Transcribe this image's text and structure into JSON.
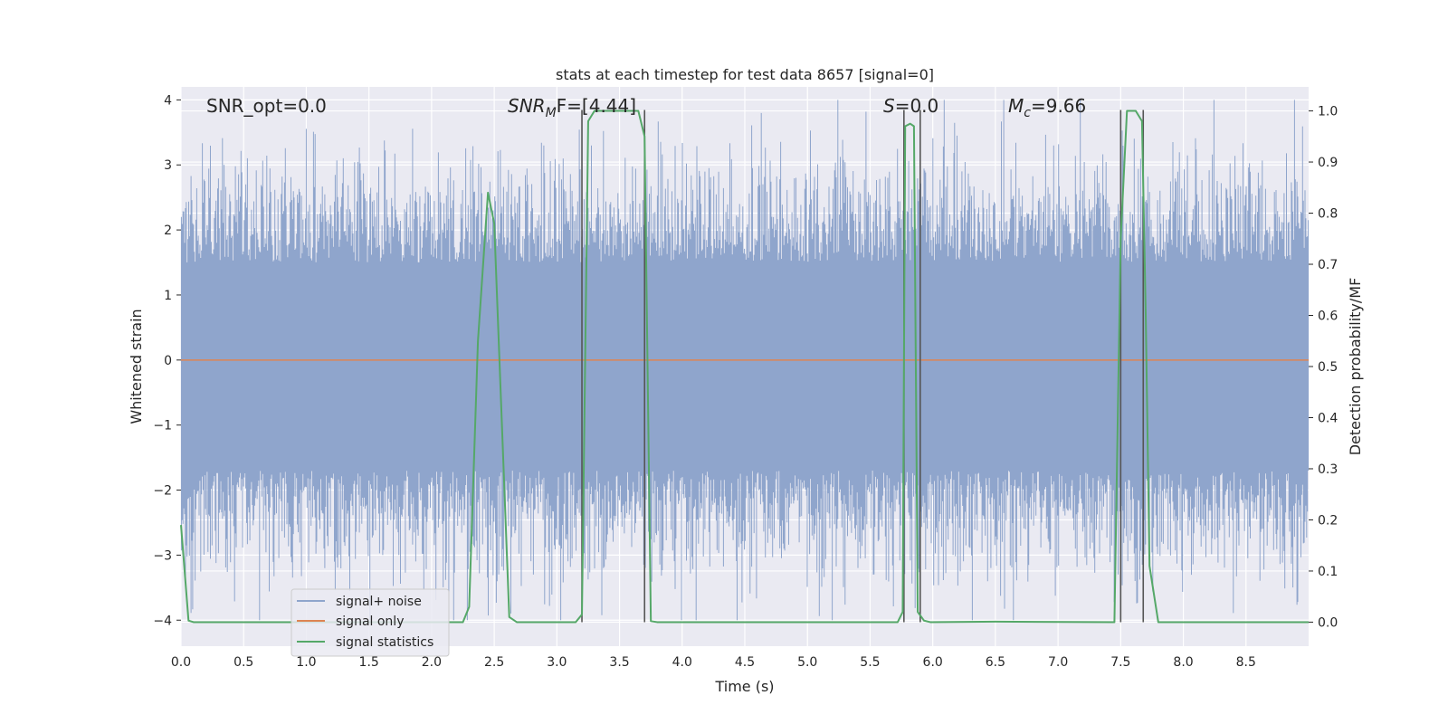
{
  "chart_data": {
    "type": "line",
    "title": "stats at each timestep for test data 8657 [signal=0]",
    "xlabel": "Time (s)",
    "ylabel": "Whitened strain",
    "y2label": "Detection probability/MF",
    "xlim": [
      0.0,
      9.0
    ],
    "ylim": [
      -4.4,
      4.2
    ],
    "y2lim": [
      -0.047,
      1.047
    ],
    "xticks": [
      "0.0",
      "0.5",
      "1.0",
      "1.5",
      "2.0",
      "2.5",
      "3.0",
      "3.5",
      "4.0",
      "4.5",
      "5.0",
      "5.5",
      "6.0",
      "6.5",
      "7.0",
      "7.5",
      "8.0",
      "8.5"
    ],
    "yticks": [
      "−4",
      "−3",
      "−2",
      "−1",
      "0",
      "1",
      "2",
      "3",
      "4"
    ],
    "y2ticks": [
      "0.0",
      "0.1",
      "0.2",
      "0.3",
      "0.4",
      "0.5",
      "0.6",
      "0.7",
      "0.8",
      "0.9",
      "1.0"
    ],
    "grid": true,
    "legend_location": "lower-left",
    "annotations": {
      "snr_opt": "SNR_opt=0.0",
      "snr_mf_prefix": "SNR",
      "snr_mf_sub": "M",
      "snr_mf_suffix": "F=[4.44]",
      "s_italic": "S",
      "s_rest": "=0.0",
      "mc_italic": "M",
      "mc_sub": "c",
      "mc_rest": "=9.66"
    },
    "series": [
      {
        "name": "signal+ noise",
        "color": "#8fa5cc",
        "axis": "left",
        "description": "whitened noise, roughly Gaussian, spans about -4 to 4",
        "envelope_values": [
          -1.7,
          1.5
        ]
      },
      {
        "name": "signal only",
        "color": "#dd8452",
        "axis": "left",
        "x": [
          0.0,
          9.0
        ],
        "y": [
          0.0,
          0.0
        ]
      },
      {
        "name": "signal statistics",
        "color": "#55a868",
        "axis": "right",
        "x": [
          0.0,
          0.06,
          0.1,
          2.25,
          2.3,
          2.37,
          2.45,
          2.5,
          2.62,
          2.68,
          3.15,
          3.2,
          3.25,
          3.3,
          3.65,
          3.7,
          3.75,
          3.8,
          5.72,
          5.76,
          5.78,
          5.82,
          5.85,
          5.88,
          5.93,
          5.98,
          6.5,
          7.45,
          7.5,
          7.55,
          7.62,
          7.67,
          7.7,
          7.73,
          7.8,
          9.0
        ],
        "y": [
          0.19,
          0.003,
          0.0,
          0.0,
          0.03,
          0.55,
          0.84,
          0.78,
          0.01,
          0.0,
          0.0,
          0.015,
          0.98,
          1.0,
          1.0,
          0.95,
          0.002,
          0.0,
          0.0,
          0.02,
          0.97,
          0.975,
          0.97,
          0.02,
          0.003,
          0.0,
          0.001,
          0.0,
          0.75,
          1.0,
          1.0,
          0.98,
          0.6,
          0.11,
          0.0,
          0.0
        ]
      }
    ],
    "vertical_markers": [
      3.2,
      3.7,
      5.77,
      5.9,
      7.5,
      7.68
    ]
  },
  "legend": {
    "items": [
      {
        "label": "signal+ noise",
        "color": "#8fa5cc"
      },
      {
        "label": "signal only",
        "color": "#dd8452"
      },
      {
        "label": "signal statistics",
        "color": "#55a868"
      }
    ]
  },
  "colors": {
    "plot_bg": "#eaeaf2",
    "grid": "#ffffff",
    "marker_lines": "#555555"
  }
}
